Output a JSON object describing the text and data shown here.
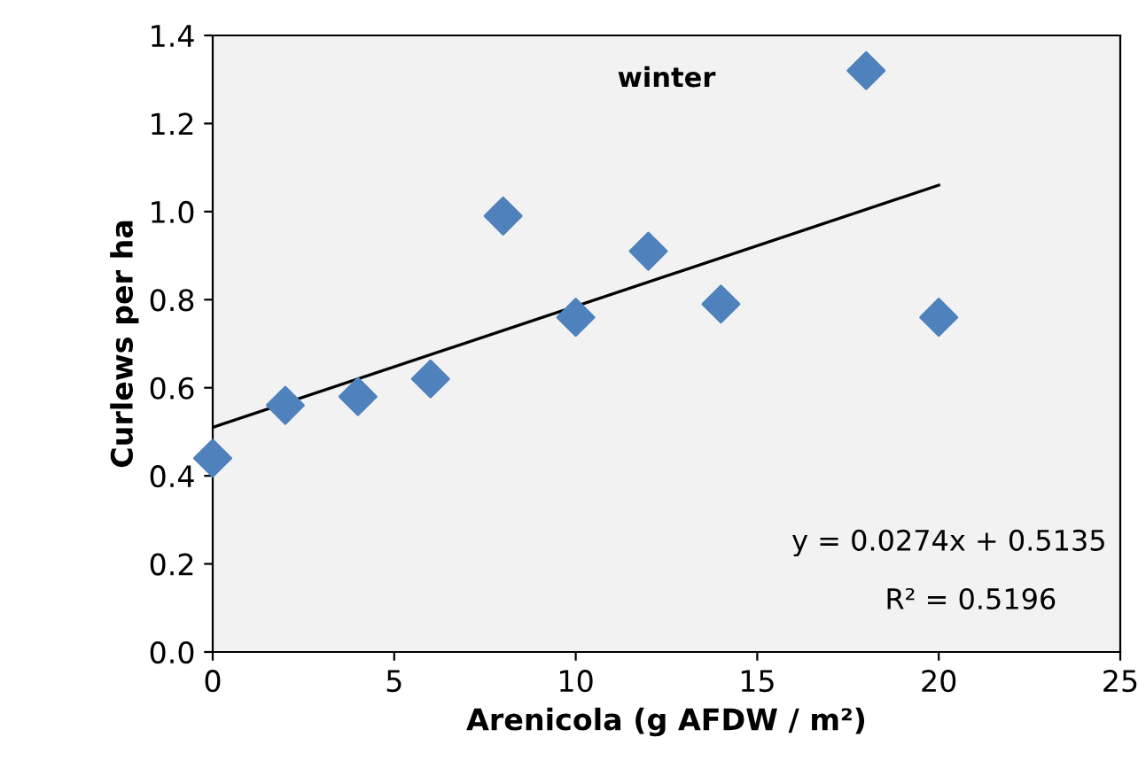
{
  "chart_data": {
    "type": "scatter",
    "xlabel": "Arenicola (g AFDW / m²)",
    "ylabel": "Curlews per ha",
    "x": [
      0,
      2,
      4,
      6,
      8,
      10,
      12,
      14,
      18,
      20
    ],
    "series": [
      {
        "color": "#4f81bd",
        "marker": "diamond",
        "values": [
          0.44,
          0.56,
          0.58,
          0.62,
          0.99,
          0.76,
          0.91,
          0.79,
          1.32,
          0.76
        ]
      },
      {
        "type": "line",
        "color": "#000000",
        "marker": "none",
        "x": [
          0,
          20
        ],
        "values": [
          0.51,
          1.06
        ]
      }
    ],
    "annotations": [
      "winter",
      "y = 0.0274x + 0.5135",
      "R² = 0.5196"
    ],
    "xlim": [
      0,
      25
    ],
    "xticks": [
      0,
      5,
      10,
      15,
      20,
      25
    ],
    "ylim": [
      0,
      1.4
    ],
    "yticks": [
      {
        "value": 0,
        "label": "0.0"
      },
      0.2,
      0.4,
      0.6,
      0.8,
      {
        "value": 1,
        "label": "1.0"
      },
      1.2,
      1.4
    ],
    "grid": false,
    "legend": false
  }
}
